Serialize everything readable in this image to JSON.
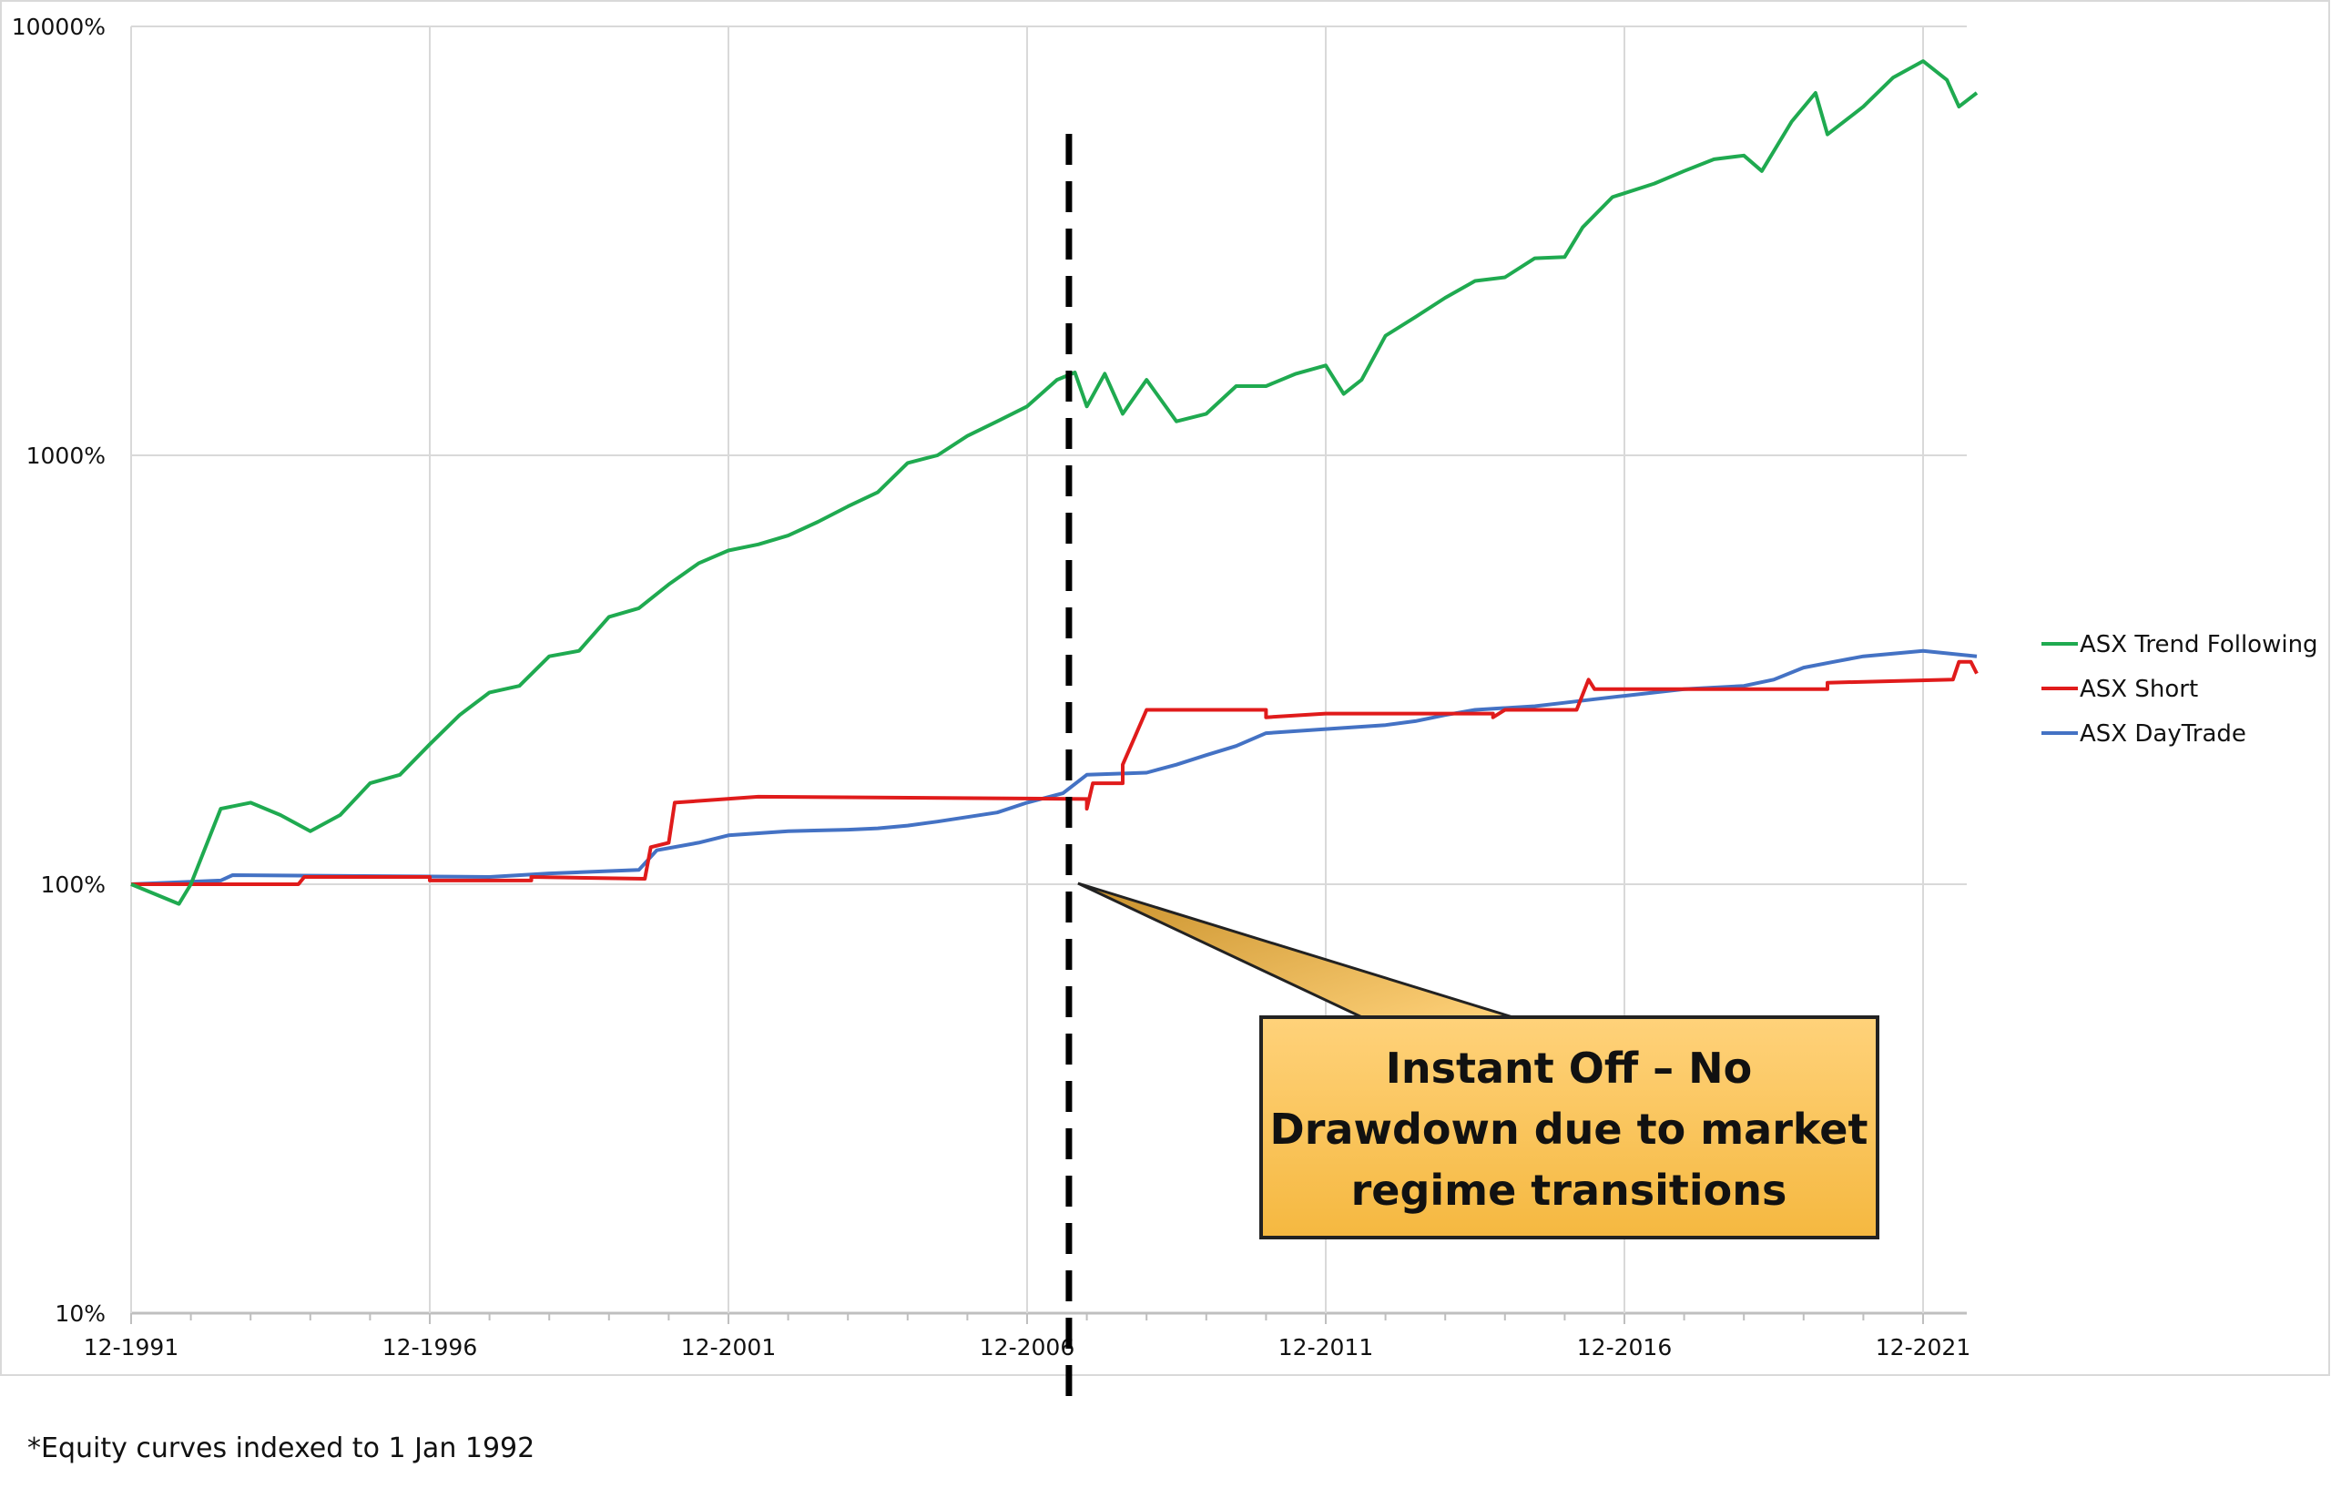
{
  "chart_data": {
    "type": "line",
    "title": "",
    "xlabel": "",
    "ylabel": "",
    "y_scale": "log",
    "ylim": [
      10,
      10000
    ],
    "y_ticks": [
      "10%",
      "100%",
      "1000%",
      "10000%"
    ],
    "x_ticks": [
      "12-1991",
      "12-1996",
      "12-2001",
      "12-2006",
      "12-2011",
      "12-2016",
      "12-2021"
    ],
    "grid": true,
    "legend_position": "right",
    "series": [
      {
        "name": "ASX Trend Following",
        "color": "#1faa50",
        "points": [
          [
            1992.0,
            100
          ],
          [
            1992.8,
            90
          ],
          [
            1993.0,
            100
          ],
          [
            1993.5,
            150
          ],
          [
            1994.0,
            155
          ],
          [
            1994.5,
            145
          ],
          [
            1995.0,
            133
          ],
          [
            1995.5,
            145
          ],
          [
            1996.0,
            172
          ],
          [
            1996.5,
            180
          ],
          [
            1997.0,
            212
          ],
          [
            1997.5,
            248
          ],
          [
            1998.0,
            280
          ],
          [
            1998.5,
            290
          ],
          [
            1999.0,
            340
          ],
          [
            1999.5,
            350
          ],
          [
            2000.0,
            420
          ],
          [
            2000.5,
            440
          ],
          [
            2001.0,
            500
          ],
          [
            2001.5,
            560
          ],
          [
            2002.0,
            600
          ],
          [
            2002.5,
            620
          ],
          [
            2003.0,
            650
          ],
          [
            2003.5,
            700
          ],
          [
            2004.0,
            760
          ],
          [
            2004.5,
            820
          ],
          [
            2005.0,
            960
          ],
          [
            2005.5,
            1000
          ],
          [
            2006.0,
            1110
          ],
          [
            2006.5,
            1200
          ],
          [
            2007.0,
            1300
          ],
          [
            2007.5,
            1500
          ],
          [
            2007.8,
            1560
          ],
          [
            2008.0,
            1300
          ],
          [
            2008.3,
            1550
          ],
          [
            2008.6,
            1250
          ],
          [
            2009.0,
            1500
          ],
          [
            2009.5,
            1200
          ],
          [
            2010.0,
            1250
          ],
          [
            2010.5,
            1450
          ],
          [
            2011.0,
            1450
          ],
          [
            2011.5,
            1550
          ],
          [
            2012.0,
            1620
          ],
          [
            2012.3,
            1390
          ],
          [
            2012.6,
            1500
          ],
          [
            2013.0,
            1900
          ],
          [
            2013.5,
            2100
          ],
          [
            2014.0,
            2330
          ],
          [
            2014.5,
            2550
          ],
          [
            2015.0,
            2600
          ],
          [
            2015.5,
            2880
          ],
          [
            2016.0,
            2900
          ],
          [
            2016.3,
            3400
          ],
          [
            2016.8,
            4000
          ],
          [
            2017.5,
            4300
          ],
          [
            2018.0,
            4600
          ],
          [
            2018.5,
            4900
          ],
          [
            2019.0,
            5000
          ],
          [
            2019.3,
            4600
          ],
          [
            2019.8,
            6000
          ],
          [
            2020.2,
            7000
          ],
          [
            2020.4,
            5600
          ],
          [
            2021.0,
            6500
          ],
          [
            2021.5,
            7600
          ],
          [
            2022.0,
            8300
          ],
          [
            2022.4,
            7500
          ],
          [
            2022.6,
            6500
          ],
          [
            2022.9,
            7000
          ]
        ]
      },
      {
        "name": "ASX Short",
        "color": "#e01b1b",
        "points": [
          [
            1992.0,
            100
          ],
          [
            1994.8,
            100
          ],
          [
            1994.9,
            104
          ],
          [
            1997.0,
            104
          ],
          [
            1997.0,
            102
          ],
          [
            1998.7,
            102
          ],
          [
            1998.7,
            104
          ],
          [
            2000.6,
            103
          ],
          [
            2000.7,
            122
          ],
          [
            2001.0,
            125
          ],
          [
            2001.1,
            155
          ],
          [
            2002.5,
            160
          ],
          [
            2008.0,
            158
          ],
          [
            2008.0,
            150
          ],
          [
            2008.1,
            172
          ],
          [
            2008.6,
            172
          ],
          [
            2008.6,
            190
          ],
          [
            2008.8,
            220
          ],
          [
            2009.0,
            255
          ],
          [
            2011.0,
            255
          ],
          [
            2011.0,
            245
          ],
          [
            2012.0,
            250
          ],
          [
            2014.8,
            250
          ],
          [
            2014.8,
            245
          ],
          [
            2015.0,
            255
          ],
          [
            2016.2,
            255
          ],
          [
            2016.4,
            300
          ],
          [
            2016.5,
            285
          ],
          [
            2020.4,
            285
          ],
          [
            2020.4,
            295
          ],
          [
            2022.5,
            300
          ],
          [
            2022.6,
            330
          ],
          [
            2022.8,
            330
          ],
          [
            2022.9,
            310
          ]
        ]
      },
      {
        "name": "ASX DayTrade",
        "color": "#4472c4",
        "points": [
          [
            1992.0,
            100
          ],
          [
            1993.5,
            102
          ],
          [
            1993.7,
            105
          ],
          [
            1998.0,
            104
          ],
          [
            1999.0,
            106
          ],
          [
            2000.5,
            108
          ],
          [
            2000.8,
            120
          ],
          [
            2001.5,
            125
          ],
          [
            2002.0,
            130
          ],
          [
            2003.0,
            133
          ],
          [
            2004.0,
            134
          ],
          [
            2004.5,
            135
          ],
          [
            2005.0,
            137
          ],
          [
            2005.5,
            140
          ],
          [
            2006.5,
            147
          ],
          [
            2007.0,
            155
          ],
          [
            2007.6,
            163
          ],
          [
            2008.0,
            180
          ],
          [
            2009.0,
            182
          ],
          [
            2009.5,
            190
          ],
          [
            2010.0,
            200
          ],
          [
            2010.5,
            210
          ],
          [
            2011.0,
            225
          ],
          [
            2012.0,
            230
          ],
          [
            2013.0,
            235
          ],
          [
            2013.5,
            240
          ],
          [
            2014.0,
            248
          ],
          [
            2014.5,
            255
          ],
          [
            2015.5,
            260
          ],
          [
            2016.0,
            265
          ],
          [
            2016.5,
            270
          ],
          [
            2017.0,
            275
          ],
          [
            2018.0,
            285
          ],
          [
            2019.0,
            290
          ],
          [
            2019.5,
            300
          ],
          [
            2020.0,
            320
          ],
          [
            2020.5,
            330
          ],
          [
            2021.0,
            340
          ],
          [
            2022.0,
            350
          ],
          [
            2022.9,
            340
          ]
        ]
      }
    ],
    "annotations": {
      "vertical_marker_date": 2007.7,
      "callout_text": [
        "Instant Off – No",
        "Drawdown due to market",
        "regime transitions"
      ],
      "callout_fill": "#fcc35c"
    }
  },
  "footnote": "*Equity curves indexed to 1 Jan 1992"
}
